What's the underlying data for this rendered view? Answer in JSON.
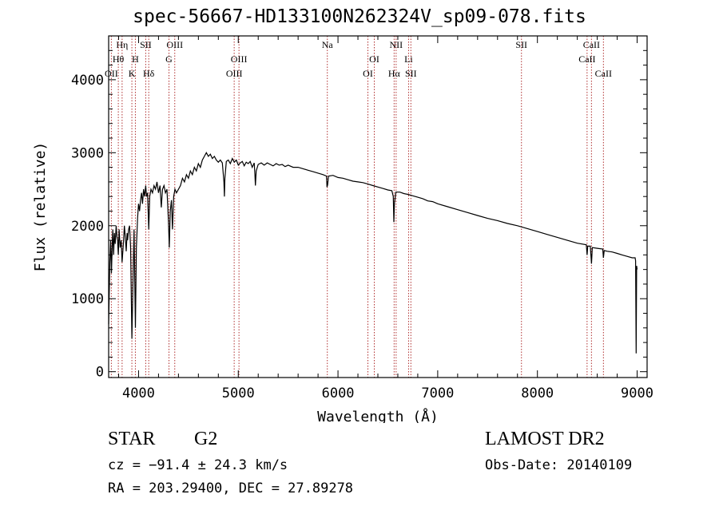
{
  "header": {
    "title": "spec-56667-HD133100N262324V_sp09-078.fits"
  },
  "info": {
    "object_class": "STAR",
    "subclass": "G2",
    "survey": "LAMOST DR2",
    "cz": "cz = −91.4 ± 24.3 km/s",
    "obs_date": "Obs-Date: 20140109",
    "ra_dec": "RA = 203.29400, DEC =  27.89278"
  },
  "chart_data": {
    "type": "line",
    "xlabel": "Wavelength (Å)",
    "ylabel": "Flux (relative)",
    "xlim": [
      3700,
      9100
    ],
    "ylim": [
      -80,
      4600
    ],
    "xticks": [
      4000,
      5000,
      6000,
      7000,
      8000,
      9000
    ],
    "yticks": [
      0,
      1000,
      2000,
      3000,
      4000
    ],
    "grid": false,
    "line_color": "#000000",
    "marker_color": "#b03030",
    "line_markers": [
      {
        "label": "Hη",
        "x": 3835,
        "row": 0
      },
      {
        "label": "Hθ",
        "x": 3797,
        "row": 1
      },
      {
        "label": "OII",
        "x": 3727,
        "row": 2
      },
      {
        "label": "SII",
        "x": 4072,
        "row": 0
      },
      {
        "label": "H",
        "x": 3968,
        "row": 1
      },
      {
        "label": "K",
        "x": 3933,
        "row": 2
      },
      {
        "label": "Hδ",
        "x": 4102,
        "row": 2
      },
      {
        "label": "OIII",
        "x": 4363,
        "row": 0
      },
      {
        "label": "G",
        "x": 4305,
        "row": 1
      },
      {
        "label": "OIII",
        "x": 5007,
        "row": 1
      },
      {
        "label": "OIII",
        "x": 4959,
        "row": 2
      },
      {
        "label": "Na",
        "x": 5893,
        "row": 0
      },
      {
        "label": "OI",
        "x": 6364,
        "row": 1
      },
      {
        "label": "OI",
        "x": 6300,
        "row": 2
      },
      {
        "label": "NII",
        "x": 6583,
        "row": 0
      },
      {
        "label": "Hα",
        "x": 6563,
        "row": 2
      },
      {
        "label": "Li",
        "x": 6708,
        "row": 1
      },
      {
        "label": "SII",
        "x": 6731,
        "row": 2
      },
      {
        "label": "SII",
        "x": 7840,
        "row": 0
      },
      {
        "label": "CaII",
        "x": 8542,
        "row": 0
      },
      {
        "label": "CaII",
        "x": 8498,
        "row": 1
      },
      {
        "label": "CaII",
        "x": 8662,
        "row": 2
      }
    ],
    "series": [
      {
        "points": [
          [
            3700,
            650
          ],
          [
            3705,
            1000
          ],
          [
            3712,
            1500
          ],
          [
            3720,
            1800
          ],
          [
            3728,
            1350
          ],
          [
            3735,
            1700
          ],
          [
            3742,
            1950
          ],
          [
            3750,
            1600
          ],
          [
            3758,
            1900
          ],
          [
            3766,
            1750
          ],
          [
            3775,
            2000
          ],
          [
            3783,
            1850
          ],
          [
            3790,
            1800
          ],
          [
            3797,
            1600
          ],
          [
            3805,
            1950
          ],
          [
            3815,
            1700
          ],
          [
            3826,
            1800
          ],
          [
            3835,
            1500
          ],
          [
            3843,
            1650
          ],
          [
            3850,
            1800
          ],
          [
            3858,
            2000
          ],
          [
            3867,
            1850
          ],
          [
            3876,
            1650
          ],
          [
            3885,
            1900
          ],
          [
            3890,
            1800
          ],
          [
            3900,
            1950
          ],
          [
            3910,
            2000
          ],
          [
            3920,
            1700
          ],
          [
            3933,
            450
          ],
          [
            3945,
            1300
          ],
          [
            3955,
            1950
          ],
          [
            3968,
            600
          ],
          [
            3978,
            1700
          ],
          [
            3990,
            2100
          ],
          [
            4000,
            2300
          ],
          [
            4010,
            2200
          ],
          [
            4020,
            2350
          ],
          [
            4030,
            2450
          ],
          [
            4040,
            2300
          ],
          [
            4050,
            2500
          ],
          [
            4060,
            2400
          ],
          [
            4072,
            2550
          ],
          [
            4080,
            2400
          ],
          [
            4090,
            2450
          ],
          [
            4102,
            1950
          ],
          [
            4112,
            2400
          ],
          [
            4125,
            2500
          ],
          [
            4140,
            2450
          ],
          [
            4155,
            2550
          ],
          [
            4170,
            2500
          ],
          [
            4185,
            2600
          ],
          [
            4200,
            2450
          ],
          [
            4215,
            2550
          ],
          [
            4228,
            2250
          ],
          [
            4240,
            2500
          ],
          [
            4255,
            2550
          ],
          [
            4270,
            2450
          ],
          [
            4285,
            2500
          ],
          [
            4300,
            2050
          ],
          [
            4308,
            1700
          ],
          [
            4318,
            2200
          ],
          [
            4330,
            2350
          ],
          [
            4340,
            1950
          ],
          [
            4352,
            2400
          ],
          [
            4365,
            2500
          ],
          [
            4380,
            2450
          ],
          [
            4400,
            2500
          ],
          [
            4420,
            2550
          ],
          [
            4440,
            2650
          ],
          [
            4460,
            2600
          ],
          [
            4480,
            2700
          ],
          [
            4500,
            2650
          ],
          [
            4520,
            2750
          ],
          [
            4540,
            2700
          ],
          [
            4560,
            2800
          ],
          [
            4580,
            2750
          ],
          [
            4600,
            2850
          ],
          [
            4620,
            2800
          ],
          [
            4640,
            2900
          ],
          [
            4660,
            2950
          ],
          [
            4680,
            3000
          ],
          [
            4700,
            2950
          ],
          [
            4720,
            2980
          ],
          [
            4740,
            2920
          ],
          [
            4760,
            2950
          ],
          [
            4780,
            2900
          ],
          [
            4800,
            2870
          ],
          [
            4820,
            2900
          ],
          [
            4840,
            2860
          ],
          [
            4856,
            2600
          ],
          [
            4861,
            2400
          ],
          [
            4866,
            2650
          ],
          [
            4880,
            2880
          ],
          [
            4900,
            2900
          ],
          [
            4920,
            2850
          ],
          [
            4940,
            2920
          ],
          [
            4960,
            2870
          ],
          [
            4980,
            2900
          ],
          [
            5000,
            2830
          ],
          [
            5020,
            2860
          ],
          [
            5040,
            2880
          ],
          [
            5060,
            2820
          ],
          [
            5080,
            2870
          ],
          [
            5100,
            2850
          ],
          [
            5120,
            2880
          ],
          [
            5140,
            2800
          ],
          [
            5160,
            2860
          ],
          [
            5167,
            2700
          ],
          [
            5172,
            2550
          ],
          [
            5180,
            2750
          ],
          [
            5200,
            2840
          ],
          [
            5230,
            2860
          ],
          [
            5260,
            2830
          ],
          [
            5290,
            2860
          ],
          [
            5320,
            2840
          ],
          [
            5350,
            2820
          ],
          [
            5380,
            2850
          ],
          [
            5410,
            2830
          ],
          [
            5440,
            2840
          ],
          [
            5470,
            2810
          ],
          [
            5500,
            2830
          ],
          [
            5550,
            2800
          ],
          [
            5600,
            2800
          ],
          [
            5650,
            2780
          ],
          [
            5700,
            2760
          ],
          [
            5750,
            2740
          ],
          [
            5800,
            2720
          ],
          [
            5850,
            2700
          ],
          [
            5885,
            2680
          ],
          [
            5890,
            2530
          ],
          [
            5896,
            2560
          ],
          [
            5905,
            2680
          ],
          [
            5950,
            2690
          ],
          [
            6000,
            2660
          ],
          [
            6050,
            2650
          ],
          [
            6100,
            2630
          ],
          [
            6150,
            2610
          ],
          [
            6200,
            2600
          ],
          [
            6250,
            2590
          ],
          [
            6300,
            2570
          ],
          [
            6350,
            2550
          ],
          [
            6400,
            2530
          ],
          [
            6450,
            2510
          ],
          [
            6500,
            2490
          ],
          [
            6540,
            2480
          ],
          [
            6555,
            2400
          ],
          [
            6560,
            2050
          ],
          [
            6566,
            2300
          ],
          [
            6580,
            2460
          ],
          [
            6620,
            2460
          ],
          [
            6660,
            2440
          ],
          [
            6700,
            2430
          ],
          [
            6750,
            2410
          ],
          [
            6800,
            2390
          ],
          [
            6850,
            2370
          ],
          [
            6900,
            2340
          ],
          [
            6950,
            2330
          ],
          [
            7000,
            2300
          ],
          [
            7100,
            2260
          ],
          [
            7200,
            2220
          ],
          [
            7300,
            2180
          ],
          [
            7400,
            2140
          ],
          [
            7500,
            2100
          ],
          [
            7600,
            2070
          ],
          [
            7700,
            2030
          ],
          [
            7800,
            2000
          ],
          [
            7900,
            1960
          ],
          [
            8000,
            1920
          ],
          [
            8100,
            1880
          ],
          [
            8200,
            1840
          ],
          [
            8300,
            1800
          ],
          [
            8400,
            1760
          ],
          [
            8490,
            1740
          ],
          [
            8498,
            1600
          ],
          [
            8505,
            1720
          ],
          [
            8530,
            1720
          ],
          [
            8542,
            1480
          ],
          [
            8550,
            1700
          ],
          [
            8600,
            1690
          ],
          [
            8655,
            1680
          ],
          [
            8662,
            1560
          ],
          [
            8670,
            1660
          ],
          [
            8700,
            1650
          ],
          [
            8750,
            1640
          ],
          [
            8800,
            1620
          ],
          [
            8850,
            1600
          ],
          [
            8900,
            1580
          ],
          [
            8950,
            1560
          ],
          [
            8980,
            1560
          ],
          [
            8985,
            1520
          ],
          [
            8990,
            250
          ],
          [
            8995,
            1450
          ],
          [
            9000,
            1400
          ]
        ]
      }
    ]
  }
}
